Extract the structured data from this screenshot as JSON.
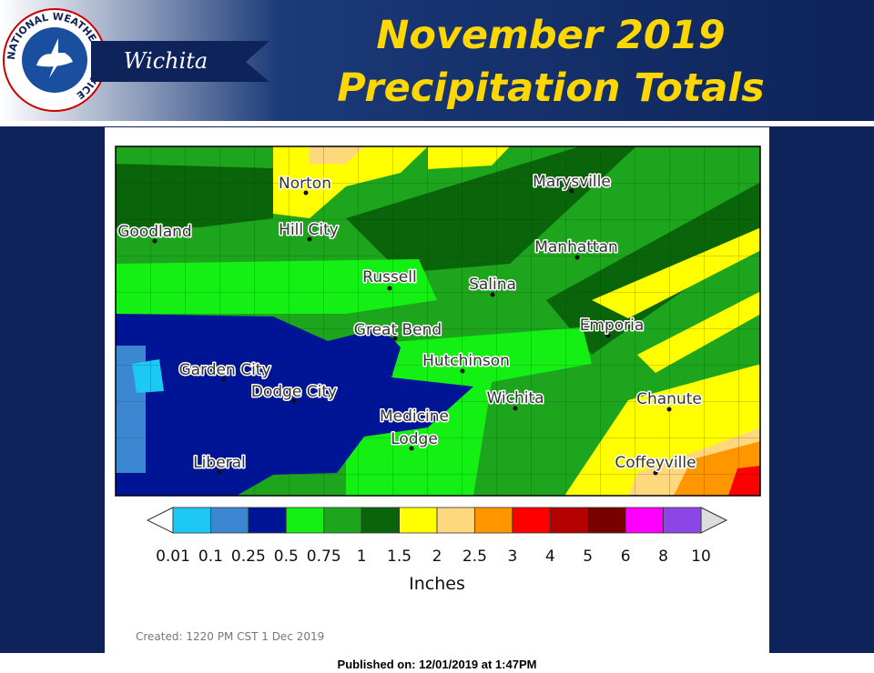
{
  "header": {
    "logo_text": "NATIONAL WEATHER SERVICE",
    "office": "Wichita",
    "title_lines": [
      "November 2019",
      "Precipitation Totals"
    ]
  },
  "map": {
    "cities": [
      {
        "lines": [
          "Norton"
        ],
        "label": [
          335,
          201
        ],
        "dot": [
          336,
          212
        ]
      },
      {
        "lines": [
          "Marysville"
        ],
        "label": [
          628,
          199
        ],
        "dot": [
          628,
          210
        ]
      },
      {
        "lines": [
          "Goodland"
        ],
        "label": [
          170,
          254
        ],
        "dot": [
          170,
          265
        ]
      },
      {
        "lines": [
          "Hill City"
        ],
        "label": [
          339,
          252
        ],
        "dot": [
          340,
          263
        ]
      },
      {
        "lines": [
          "Manhattan"
        ],
        "label": [
          633,
          271
        ],
        "dot": [
          634,
          283
        ]
      },
      {
        "lines": [
          "Russell"
        ],
        "label": [
          428,
          304
        ],
        "dot": [
          428,
          317
        ]
      },
      {
        "lines": [
          "Salina"
        ],
        "label": [
          541,
          312
        ],
        "dot": [
          541,
          324
        ]
      },
      {
        "lines": [
          "Great Bend"
        ],
        "label": [
          437,
          362
        ],
        "dot": [
          434,
          372
        ]
      },
      {
        "lines": [
          "Emporia"
        ],
        "label": [
          672,
          357
        ],
        "dot": [
          668,
          369
        ]
      },
      {
        "lines": [
          "Hutchinson"
        ],
        "label": [
          512,
          396
        ],
        "dot": [
          508,
          408
        ]
      },
      {
        "lines": [
          "Garden City"
        ],
        "label": [
          247,
          406
        ],
        "dot": [
          246,
          417
        ]
      },
      {
        "lines": [
          "Dodge City"
        ],
        "label": [
          323,
          430
        ],
        "dot": [
          323,
          441
        ]
      },
      {
        "lines": [
          "Wichita"
        ],
        "label": [
          566,
          437
        ],
        "dot": [
          566,
          449
        ]
      },
      {
        "lines": [
          "Chanute"
        ],
        "label": [
          735,
          438
        ],
        "dot": [
          735,
          450
        ]
      },
      {
        "lines": [
          "Medicine",
          "Lodge"
        ],
        "label": [
          455,
          457
        ],
        "dot": [
          452,
          493
        ]
      },
      {
        "lines": [
          "Liberal"
        ],
        "label": [
          241,
          508
        ],
        "dot": [
          241,
          519
        ]
      },
      {
        "lines": [
          "Coffeyville"
        ],
        "label": [
          720,
          508
        ],
        "dot": [
          720,
          520
        ]
      }
    ]
  },
  "legend": {
    "labels": [
      "0.01",
      "0.1",
      "0.25",
      "0.5",
      "0.75",
      "1",
      "1.5",
      "2",
      "2.5",
      "3",
      "4",
      "5",
      "6",
      "8",
      "10"
    ],
    "colors": [
      "#1ec8f5",
      "#3c87d2",
      "#001496",
      "#14f014",
      "#1ea51e",
      "#0a640a",
      "#ffff00",
      "#ffd77d",
      "#ff9600",
      "#ff0000",
      "#b40000",
      "#780000",
      "#ff00ff",
      "#8c46e6"
    ],
    "units": "Inches"
  },
  "created": "Created: 1220 PM CST 1 Dec 2019",
  "published": "Published on: 12/01/2019 at 1:47PM"
}
